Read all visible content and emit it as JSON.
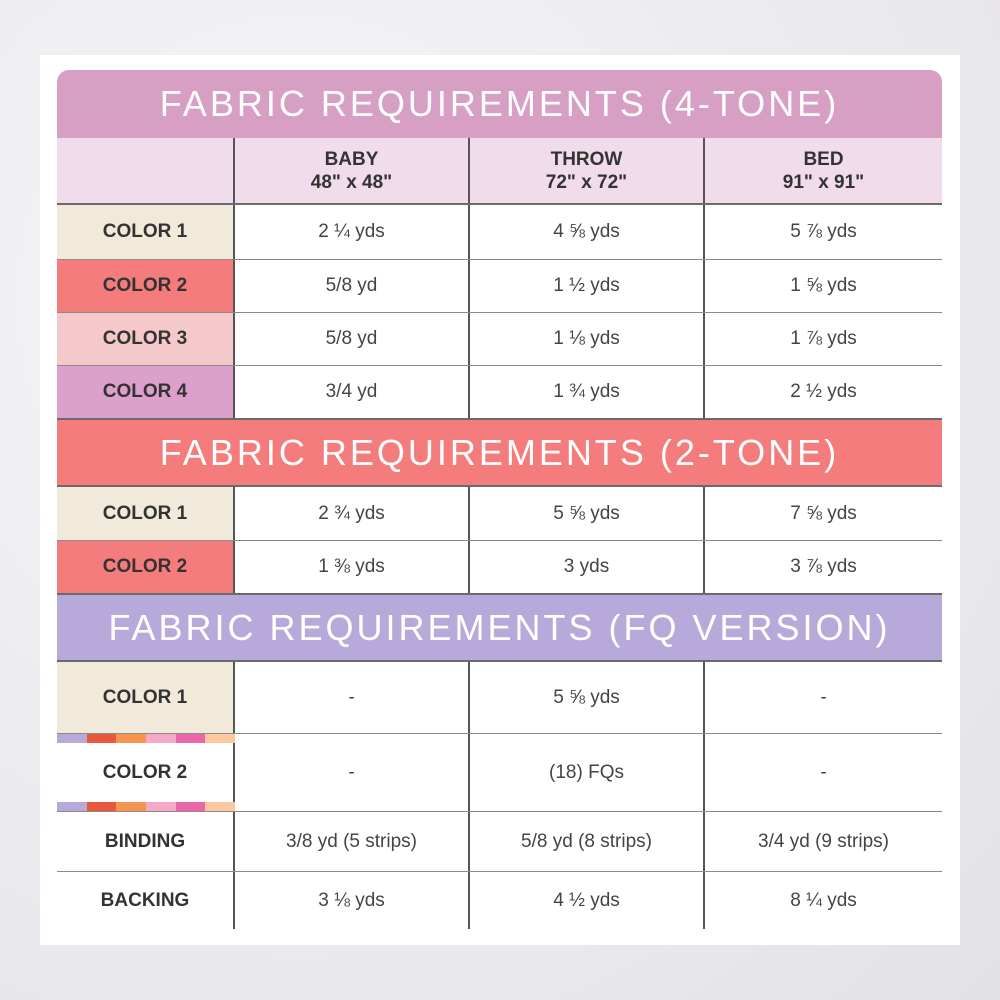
{
  "sections": [
    {
      "title": "FABRIC REQUIREMENTS (4-TONE)",
      "color": "#d89fc5",
      "rows": [
        {
          "label": "COLOR 1",
          "swatch": "#f1e9d9",
          "values": [
            "2 ¼ yds",
            "4 ⅝ yds",
            "5 ⅞ yds"
          ]
        },
        {
          "label": "COLOR 2",
          "swatch": "#f47c7c",
          "values": [
            "5/8 yd",
            "1 ½ yds",
            "1 ⅝ yds"
          ]
        },
        {
          "label": "COLOR 3",
          "swatch": "#f5c9cc",
          "values": [
            "5/8 yd",
            "1 ⅛ yds",
            "1 ⅞ yds"
          ]
        },
        {
          "label": "COLOR 4",
          "swatch": "#dda0cc",
          "values": [
            "3/4 yd",
            "1 ¾ yds",
            "2 ½ yds"
          ]
        }
      ]
    },
    {
      "title": "FABRIC REQUIREMENTS (2-TONE)",
      "color": "#f47c7c",
      "rows": [
        {
          "label": "COLOR 1",
          "swatch": "#f1e9d9",
          "values": [
            "2 ¾ yds",
            "5 ⅝ yds",
            "7 ⅝ yds"
          ]
        },
        {
          "label": "COLOR 2",
          "swatch": "#f47c7c",
          "values": [
            "1 ⅜ yds",
            "3 yds",
            "3 ⅞ yds"
          ]
        }
      ]
    },
    {
      "title": "FABRIC REQUIREMENTS (FQ VERSION)",
      "color": "#b7a9d9",
      "rows": [
        {
          "label": "COLOR 1",
          "swatch": "#f1e9d9",
          "values": [
            "-",
            "5 ⅝ yds",
            "-"
          ]
        },
        {
          "label": "COLOR 2",
          "swatch": "multi",
          "values": [
            "-",
            "(18) FQs",
            "-"
          ]
        },
        {
          "label": "BINDING",
          "values": [
            "3/8 yd (5 strips)",
            "5/8 yd (8 strips)",
            "3/4 yd (9 strips)"
          ]
        },
        {
          "label": "BACKING",
          "values": [
            "3 ⅛ yds",
            "4 ½ yds",
            "8 ¼ yds"
          ]
        }
      ]
    }
  ],
  "columns": [
    {
      "name": "BABY",
      "size": "48\" x 48\""
    },
    {
      "name": "THROW",
      "size": "72\" x 72\""
    },
    {
      "name": "BED",
      "size": "91\" x 91\""
    }
  ],
  "colors": {
    "header_bg": "#f0dcea",
    "stripe": [
      "#b7a9d9",
      "#e9573d",
      "#f6954f",
      "#f5a9c8",
      "#ea66a8",
      "#fcc8a0"
    ]
  }
}
